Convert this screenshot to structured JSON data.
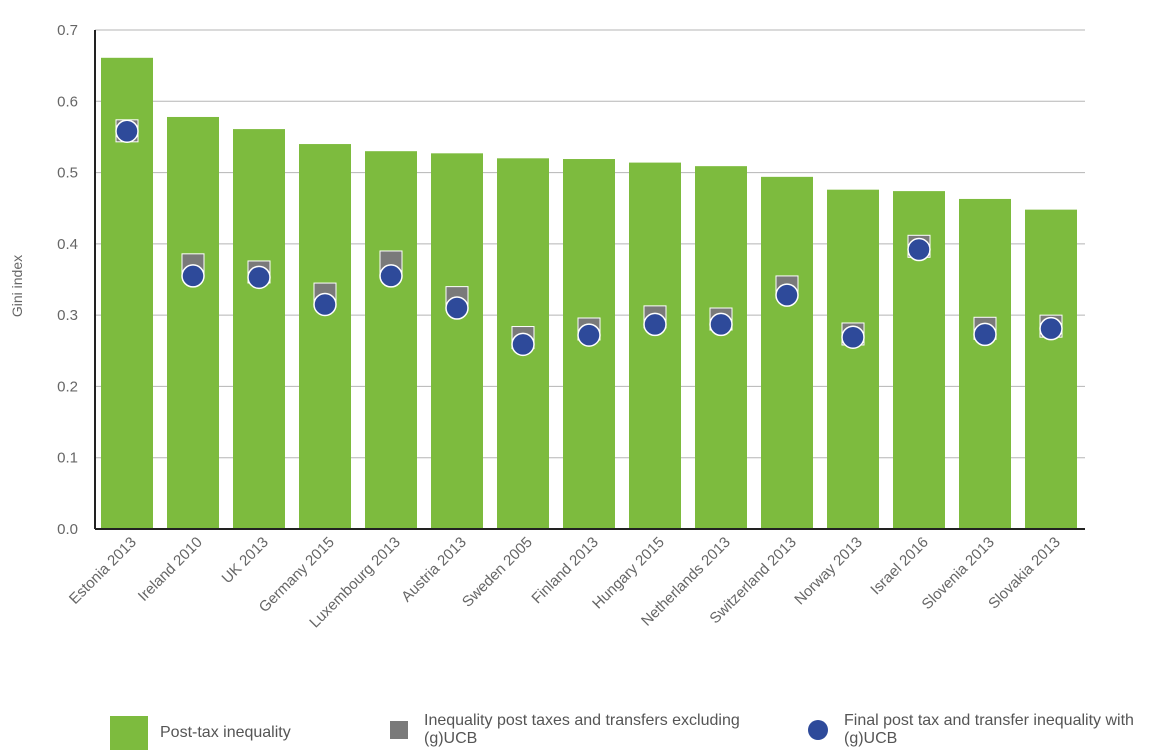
{
  "chart_data": {
    "type": "bar",
    "ylabel": "Gini index",
    "xlabel": "",
    "ylim": [
      0,
      0.7
    ],
    "yticks": [
      "0.0",
      "0.1",
      "0.2",
      "0.3",
      "0.4",
      "0.5",
      "0.6",
      "0.7"
    ],
    "grid": true,
    "categories": [
      "Estonia 2013",
      "Ireland 2010",
      "UK 2013",
      "Germany 2015",
      "Luxembourg 2013",
      "Austria 2013",
      "Sweden 2005",
      "Finland 2013",
      "Hungary 2015",
      "Netherlands 2013",
      "Switzerland 2013",
      "Norway 2013",
      "Israel 2016",
      "Slovenia 2013",
      "Slovakia 2013"
    ],
    "series": [
      {
        "name": "Post-tax inequality",
        "kind": "bar",
        "color": "#7dbb3e",
        "values": [
          0.661,
          0.578,
          0.561,
          0.54,
          0.53,
          0.527,
          0.52,
          0.519,
          0.514,
          0.509,
          0.494,
          0.476,
          0.474,
          0.463,
          0.448
        ]
      },
      {
        "name": "Inequality post taxes and transfers excluding (g)UCB",
        "kind": "square",
        "color": "#7a7a7a",
        "values": [
          0.574,
          0.386,
          0.376,
          0.345,
          0.39,
          0.34,
          0.284,
          0.296,
          0.313,
          0.31,
          0.355,
          0.289,
          0.412,
          0.297,
          0.3
        ]
      },
      {
        "name": "Final post tax and transfer inequality with (g)UCB",
        "kind": "dot",
        "color": "#2e4a9a",
        "values": [
          0.558,
          0.355,
          0.353,
          0.315,
          0.355,
          0.31,
          0.259,
          0.272,
          0.287,
          0.287,
          0.328,
          0.269,
          0.392,
          0.273,
          0.281
        ]
      }
    ],
    "legend_position": "bottom"
  },
  "legend": [
    {
      "label": "Post-tax inequality"
    },
    {
      "label": "Inequality post taxes and transfers excluding (g)UCB"
    },
    {
      "label": "Final post tax and transfer inequality with (g)UCB"
    }
  ]
}
